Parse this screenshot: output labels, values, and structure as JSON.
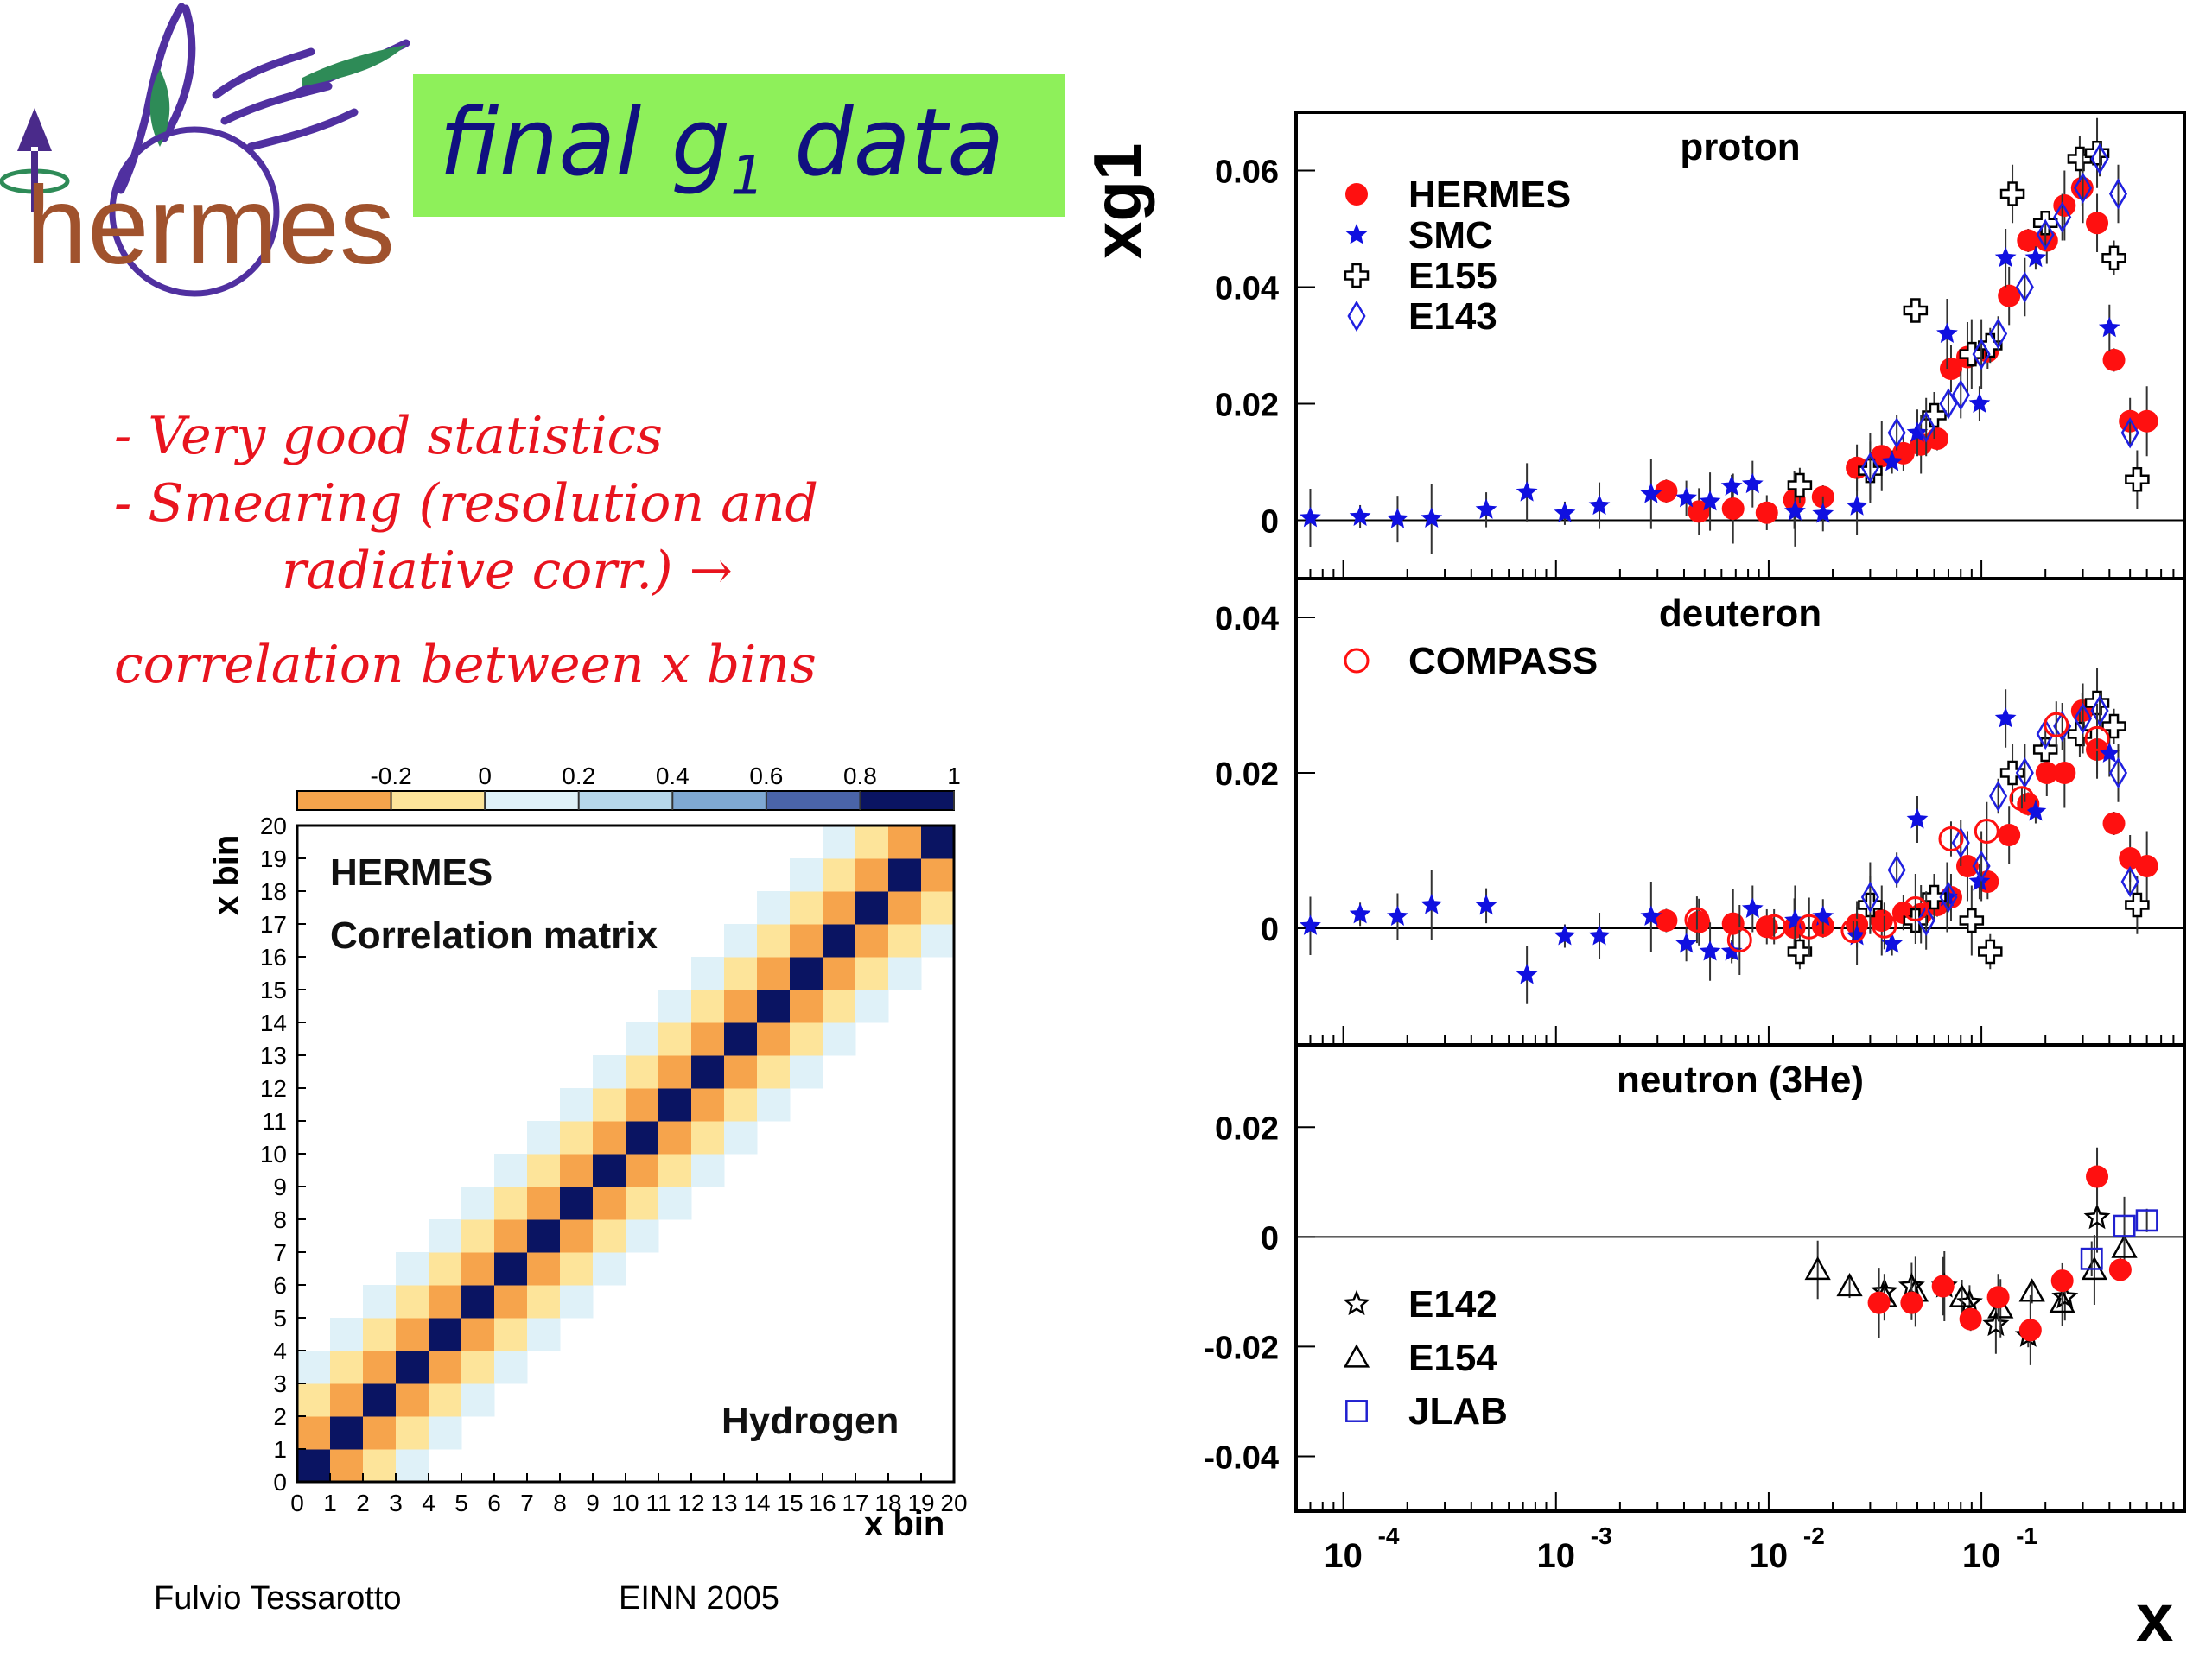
{
  "logo": {
    "text": "hermes",
    "colors": {
      "text": "#a0522d",
      "wings": "#5030a0",
      "green": "#2e8b57",
      "arrow": "#4a2a8a"
    }
  },
  "title": {
    "main": "final g",
    "subscript": "1",
    "tail": " data",
    "bg_color": "#8ef05a",
    "text_color": "#101080"
  },
  "bullets": [
    "- Very good statistics",
    "- Smearing (resolution and",
    "radiative  corr.)   →",
    "correlation between x bins"
  ],
  "footer": {
    "author": "Fulvio Tessarotto",
    "event": "EINN 2005"
  },
  "chart_data": [
    {
      "type": "heatmap",
      "title": "",
      "labels": [
        "HERMES",
        "Correlation matrix",
        "Hydrogen"
      ],
      "xlabel": "x bin",
      "ylabel": "x bin",
      "x_ticks": [
        "0",
        "1",
        "2",
        "3",
        "4",
        "5",
        "6",
        "7",
        "8",
        "9",
        "10",
        "11",
        "12",
        "13",
        "14",
        "15",
        "16",
        "17",
        "18",
        "19",
        "20"
      ],
      "y_ticks": [
        "0",
        "1",
        "2",
        "3",
        "4",
        "5",
        "6",
        "7",
        "8",
        "9",
        "10",
        "11",
        "12",
        "13",
        "14",
        "15",
        "16",
        "17",
        "18",
        "19",
        "20"
      ],
      "n_bins": 20,
      "colorbar": {
        "ticks": [
          "-0.2",
          "0",
          "0.2",
          "0.4",
          "0.6",
          "0.8",
          "1"
        ],
        "range": [
          -0.4,
          1.0
        ],
        "colors": [
          "#f6a44c",
          "#fde49a",
          "#dff1f8",
          "#b7d7ea",
          "#7fa8d2",
          "#4a64a8",
          "#0a1462"
        ]
      },
      "structure": {
        "diagonal": 1.0,
        "first_offdiagonal": -0.3,
        "second_offdiagonal": -0.1,
        "third_offdiagonal": 0.05
      }
    },
    {
      "type": "scatter",
      "title": "",
      "xlabel": "x",
      "ylabel": "xg1",
      "xscale": "log",
      "xlim": [
        6e-05,
        0.9
      ],
      "x_ticks": [
        "10^-4",
        "10^-3",
        "10^-2",
        "10^-1"
      ],
      "panels": [
        {
          "name": "proton",
          "ylim": [
            -0.01,
            0.07
          ],
          "y_ticks": [
            "0",
            "0.02",
            "0.04",
            "0.06"
          ],
          "legend": "left",
          "series": [
            {
              "name": "HERMES",
              "marker": "filled-circle",
              "color": "#ff1010",
              "x": [
                0.0033,
                0.0047,
                0.0068,
                0.0098,
                0.0132,
                0.018,
                0.026,
                0.034,
                0.043,
                0.052,
                0.062,
                0.072,
                0.086,
                0.107,
                0.135,
                0.166,
                0.203,
                0.246,
                0.298,
                0.35,
                0.42,
                0.5,
                0.6
              ],
              "y": [
                0.005,
                0.0015,
                0.002,
                0.0013,
                0.0035,
                0.004,
                0.009,
                0.011,
                0.0115,
                0.013,
                0.014,
                0.026,
                0.028,
                0.029,
                0.0385,
                0.048,
                0.048,
                0.054,
                0.057,
                0.051,
                0.0275,
                0.017,
                0.017
              ]
            },
            {
              "name": "SMC",
              "marker": "star",
              "color": "#1010e0",
              "x": [
                7e-05,
                0.00012,
                0.00018,
                0.00026,
                0.00047,
                0.00073,
                0.0011,
                0.0016,
                0.0028,
                0.0041,
                0.0053,
                0.0067,
                0.0084,
                0.0133,
                0.018,
                0.026,
                0.038,
                0.05,
                0.069,
                0.098,
                0.13,
                0.18,
                0.4
              ],
              "y": [
                0.0004,
                0.0006,
                0.0002,
                0.0003,
                0.0018,
                0.0048,
                0.0012,
                0.0025,
                0.0045,
                0.0038,
                0.0032,
                0.0058,
                0.0062,
                0.0015,
                0.0011,
                0.0024,
                0.01,
                0.015,
                0.032,
                0.02,
                0.045,
                0.045,
                0.033
              ]
            },
            {
              "name": "E155",
              "marker": "open-cross",
              "color": "#000000",
              "x": [
                0.014,
                0.03,
                0.049,
                0.06,
                0.09,
                0.11,
                0.14,
                0.2,
                0.29,
                0.35,
                0.42,
                0.54
              ],
              "y": [
                0.006,
                0.0085,
                0.036,
                0.018,
                0.0285,
                0.03,
                0.056,
                0.051,
                0.062,
                0.063,
                0.045,
                0.007
              ]
            },
            {
              "name": "E143",
              "marker": "open-diamond",
              "color": "#2020e0",
              "x": [
                0.03,
                0.04,
                0.055,
                0.07,
                0.08,
                0.1,
                0.12,
                0.16,
                0.2,
                0.24,
                0.3,
                0.36,
                0.44,
                0.5
              ],
              "y": [
                0.009,
                0.015,
                0.016,
                0.02,
                0.0215,
                0.0285,
                0.032,
                0.04,
                0.049,
                0.052,
                0.057,
                0.062,
                0.056,
                0.015
              ]
            }
          ]
        },
        {
          "name": "deuteron",
          "ylim": [
            -0.015,
            0.045
          ],
          "y_ticks": [
            "0",
            "0.02",
            "0.04"
          ],
          "legend": "left",
          "series": [
            {
              "name": "HERMES",
              "marker": "filled-circle",
              "color": "#ff1010",
              "x": [
                0.0033,
                0.0047,
                0.0068,
                0.0098,
                0.0132,
                0.018,
                0.026,
                0.034,
                0.043,
                0.052,
                0.062,
                0.072,
                0.086,
                0.107,
                0.135,
                0.166,
                0.203,
                0.246,
                0.298,
                0.35,
                0.42,
                0.5,
                0.6
              ],
              "y": [
                0.001,
                0.0008,
                0.0006,
                0.0002,
                0.0001,
                0.0003,
                0.0005,
                0.001,
                0.002,
                0.0018,
                0.003,
                0.004,
                0.008,
                0.006,
                0.012,
                0.016,
                0.02,
                0.02,
                0.028,
                0.023,
                0.0135,
                0.009,
                0.008
              ]
            },
            {
              "name": "SMC",
              "marker": "star",
              "color": "#1010e0",
              "x": [
                7e-05,
                0.00012,
                0.00018,
                0.00026,
                0.00047,
                0.00073,
                0.0011,
                0.0016,
                0.0028,
                0.0041,
                0.0053,
                0.0067,
                0.0084,
                0.0133,
                0.018,
                0.026,
                0.038,
                0.05,
                0.069,
                0.098,
                0.13,
                0.18,
                0.4
              ],
              "y": [
                0.0003,
                0.0018,
                0.0015,
                0.003,
                0.0029,
                -0.006,
                -0.001,
                -0.001,
                0.0015,
                -0.002,
                -0.003,
                -0.003,
                0.0025,
                0.001,
                0.0015,
                -0.001,
                -0.002,
                0.014,
                0.004,
                0.006,
                0.027,
                0.015,
                0.0225
              ]
            },
            {
              "name": "E155",
              "marker": "open-cross",
              "color": "#000000",
              "x": [
                0.014,
                0.03,
                0.049,
                0.06,
                0.09,
                0.11,
                0.14,
                0.2,
                0.29,
                0.35,
                0.42,
                0.54
              ],
              "y": [
                -0.003,
                0.003,
                0.001,
                0.004,
                0.001,
                -0.003,
                0.02,
                0.023,
                0.025,
                0.029,
                0.026,
                0.003
              ]
            },
            {
              "name": "E143",
              "marker": "open-diamond",
              "color": "#2020e0",
              "x": [
                0.03,
                0.04,
                0.055,
                0.07,
                0.08,
                0.1,
                0.12,
                0.16,
                0.2,
                0.24,
                0.3,
                0.36,
                0.44,
                0.5
              ],
              "y": [
                0.004,
                0.0075,
                0.001,
                0.004,
                0.011,
                0.008,
                0.017,
                0.02,
                0.025,
                0.026,
                0.027,
                0.028,
                0.02,
                0.006
              ]
            },
            {
              "name": "COMPASS",
              "marker": "open-circle",
              "color": "#ff1010",
              "x": [
                0.0046,
                0.0073,
                0.0106,
                0.0155,
                0.025,
                0.035,
                0.049,
                0.072,
                0.106,
                0.155,
                0.225,
                0.35
              ],
              "y": [
                0.0011,
                -0.0015,
                0.0002,
                0.0002,
                -0.0003,
                0.0003,
                0.0025,
                0.0115,
                0.0125,
                0.0167,
                0.0262,
                0.0244
              ]
            }
          ]
        },
        {
          "name": "neutron (3He)",
          "ylim": [
            -0.05,
            0.035
          ],
          "y_ticks": [
            "-0.04",
            "-0.02",
            "0",
            "0.02"
          ],
          "legend": "left",
          "series": [
            {
              "name": "E142",
              "marker": "open-star",
              "color": "#000000",
              "x": [
                0.035,
                0.047,
                0.067,
                0.088,
                0.117,
                0.166,
                0.247,
                0.35
              ],
              "y": [
                -0.01,
                -0.009,
                -0.009,
                -0.012,
                -0.016,
                -0.018,
                -0.011,
                0.0035
              ]
            },
            {
              "name": "E154",
              "marker": "open-triangle",
              "color": "#000000",
              "x": [
                0.017,
                0.024,
                0.035,
                0.049,
                0.081,
                0.123,
                0.173,
                0.24,
                0.34,
                0.47
              ],
              "y": [
                -0.006,
                -0.009,
                -0.011,
                -0.01,
                -0.011,
                -0.013,
                -0.01,
                -0.012,
                -0.006,
                -0.002
              ]
            },
            {
              "name": "JLAB",
              "marker": "open-square",
              "color": "#2020d0",
              "x": [
                0.33,
                0.47,
                0.6
              ],
              "y": [
                -0.004,
                0.002,
                0.003
              ]
            },
            {
              "name": "HERMES",
              "marker": "filled-circle",
              "color": "#ff1010",
              "x": [
                0.033,
                0.047,
                0.066,
                0.089,
                0.12,
                0.17,
                0.24,
                0.35,
                0.45
              ],
              "y": [
                -0.012,
                -0.012,
                -0.009,
                -0.015,
                -0.011,
                -0.017,
                -0.008,
                0.011,
                -0.006
              ]
            }
          ]
        }
      ]
    }
  ]
}
